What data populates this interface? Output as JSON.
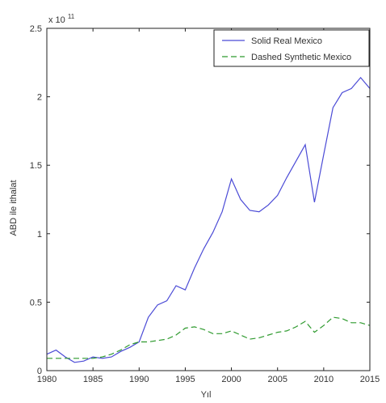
{
  "chart_data": {
    "type": "line",
    "xlabel": "Yıl",
    "ylabel": "ABD ile ithalat",
    "exponent_label": "x 10",
    "exponent_power": "11",
    "xlim": [
      1980,
      2015
    ],
    "ylim": [
      0,
      2.5
    ],
    "xticks": [
      1980,
      1985,
      1990,
      1995,
      2000,
      2005,
      2010,
      2015
    ],
    "yticks": [
      0,
      0.5,
      1,
      1.5,
      2,
      2.5
    ],
    "ytick_labels": [
      "0",
      "0.5",
      "1",
      "1.5",
      "2",
      "2.5"
    ],
    "grid": false,
    "legend_position": "top-right",
    "x": [
      1980,
      1981,
      1982,
      1983,
      1984,
      1985,
      1986,
      1987,
      1988,
      1989,
      1990,
      1991,
      1992,
      1993,
      1994,
      1995,
      1996,
      1997,
      1998,
      1999,
      2000,
      2001,
      2002,
      2003,
      2004,
      2005,
      2006,
      2007,
      2008,
      2009,
      2010,
      2011,
      2012,
      2013,
      2014,
      2015
    ],
    "series": [
      {
        "name": "Solid Real Mexico",
        "color": "#4b4bd6",
        "dash": "solid",
        "values": [
          0.12,
          0.15,
          0.1,
          0.06,
          0.07,
          0.1,
          0.09,
          0.1,
          0.14,
          0.17,
          0.21,
          0.39,
          0.48,
          0.51,
          0.62,
          0.59,
          0.75,
          0.89,
          1.01,
          1.16,
          1.4,
          1.25,
          1.17,
          1.16,
          1.21,
          1.28,
          1.41,
          1.53,
          1.65,
          1.23,
          1.58,
          1.92,
          2.03,
          2.06,
          2.14,
          2.06
        ]
      },
      {
        "name": "Dashed Synthetic Mexico",
        "color": "#2e9a2e",
        "dash": "dashed",
        "values": [
          0.09,
          0.09,
          0.09,
          0.09,
          0.09,
          0.09,
          0.1,
          0.12,
          0.15,
          0.19,
          0.21,
          0.21,
          0.22,
          0.23,
          0.26,
          0.31,
          0.32,
          0.3,
          0.27,
          0.27,
          0.29,
          0.26,
          0.23,
          0.24,
          0.26,
          0.28,
          0.29,
          0.32,
          0.36,
          0.28,
          0.33,
          0.39,
          0.38,
          0.35,
          0.35,
          0.33
        ]
      }
    ]
  }
}
